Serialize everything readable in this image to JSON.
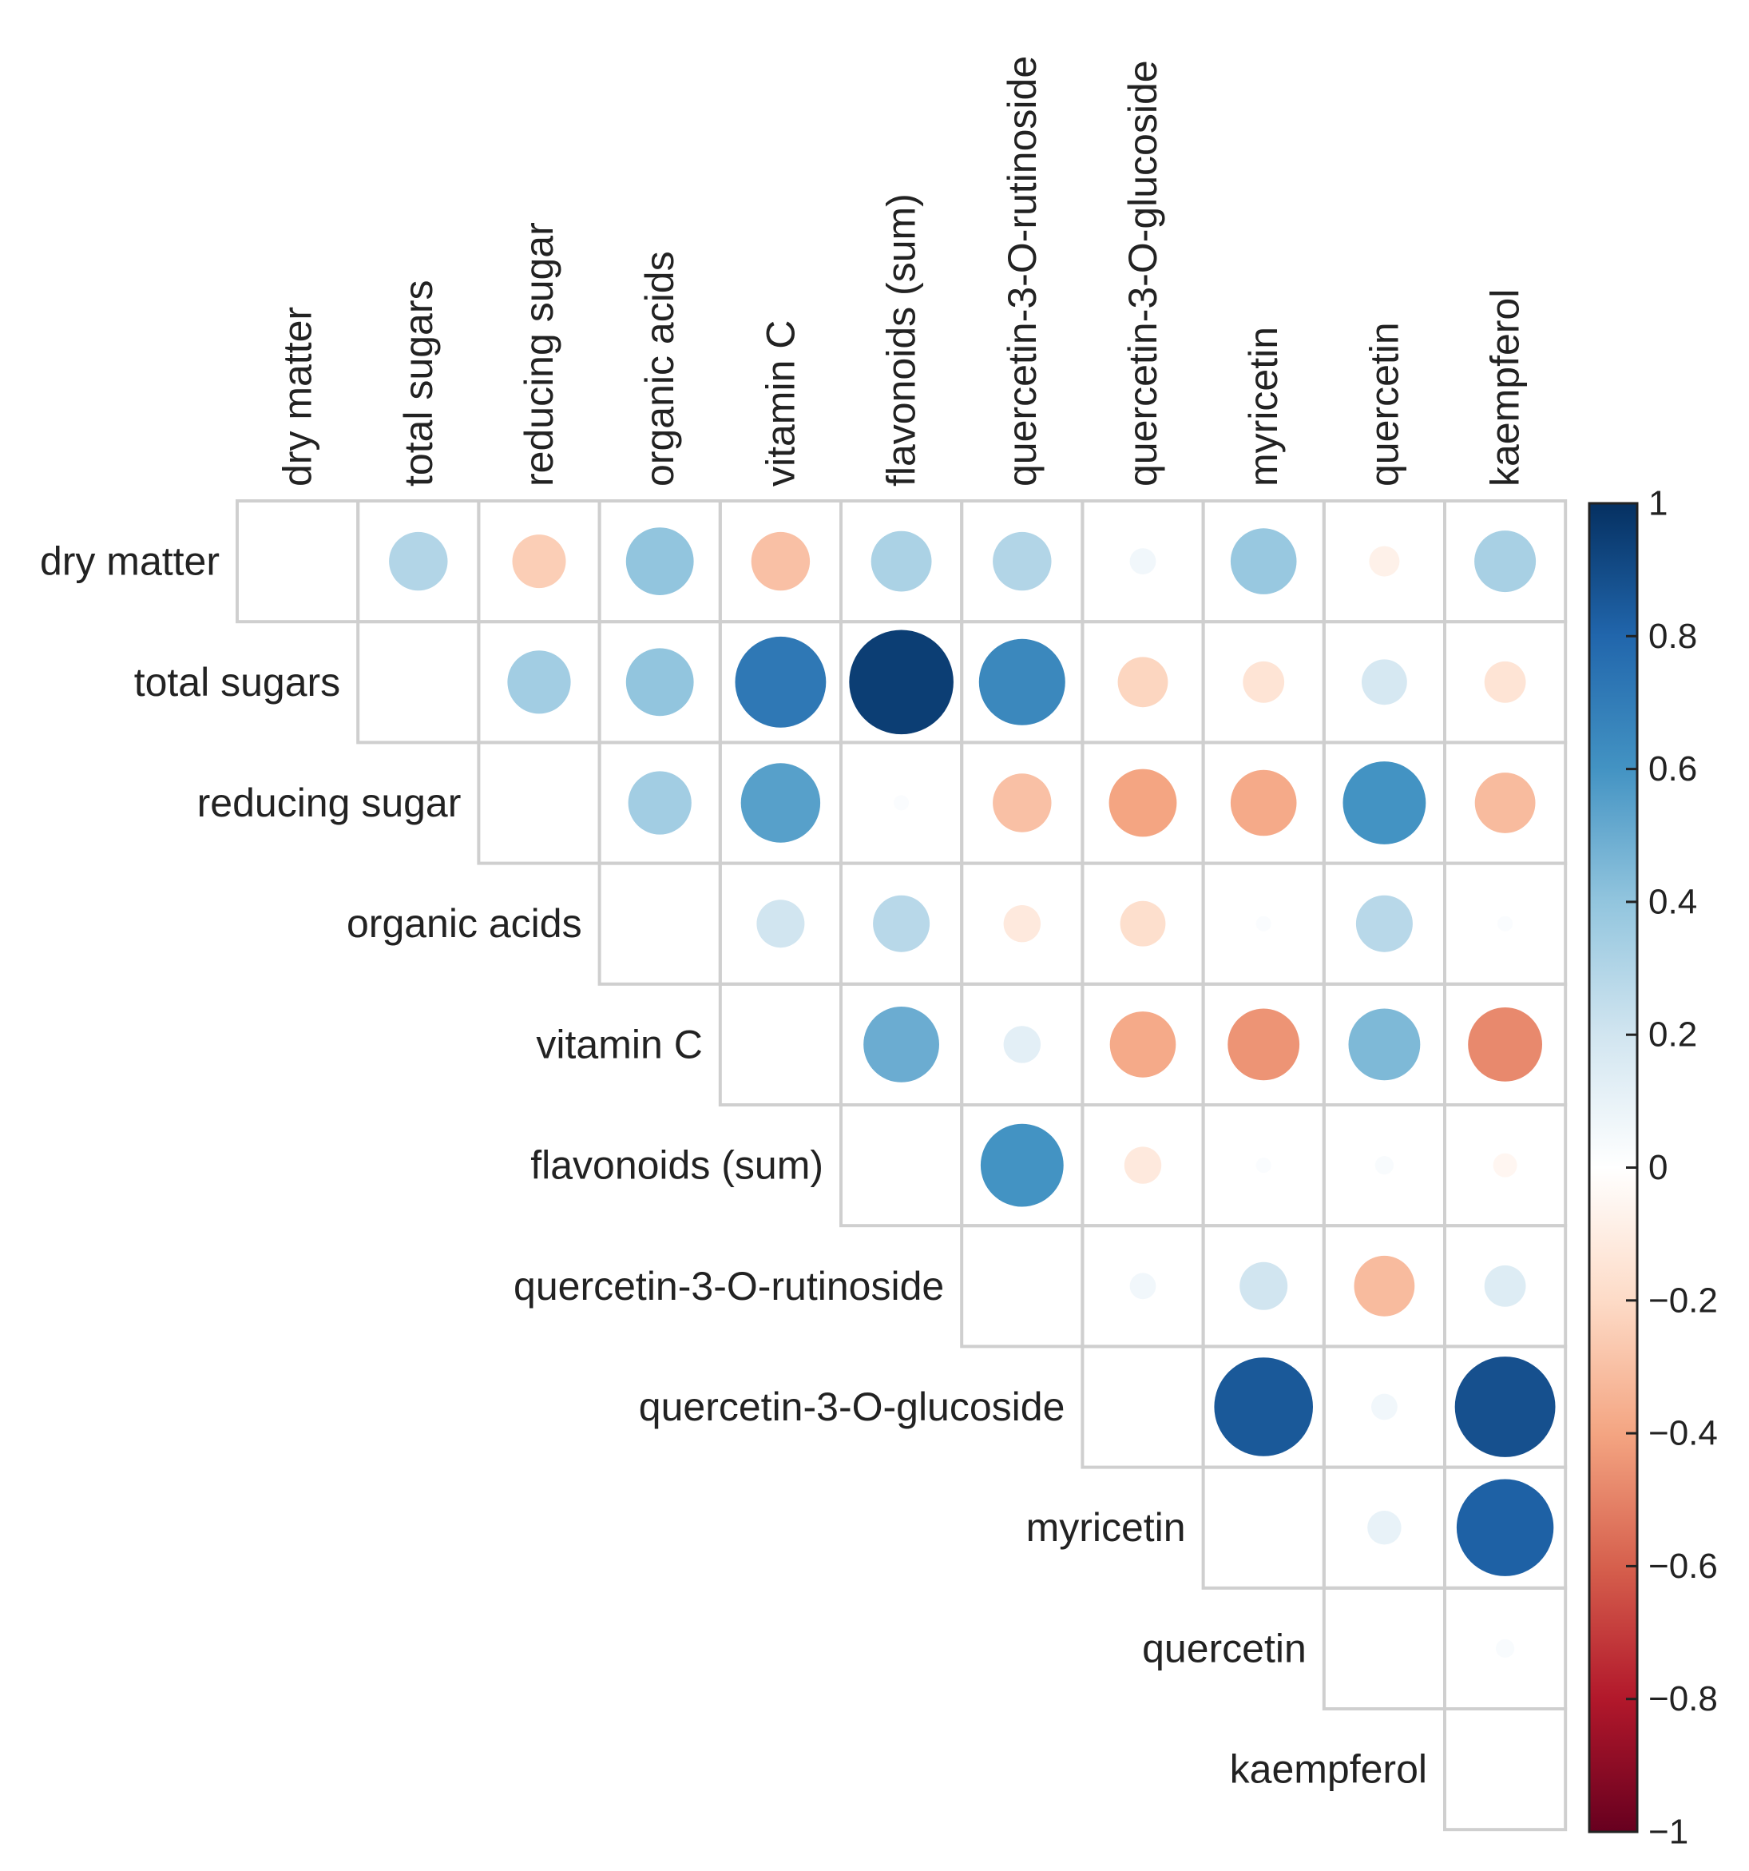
{
  "chart_data": {
    "type": "heatmap",
    "style": "correlation-circles-upper-triangle",
    "variables": [
      "dry matter",
      "total sugars",
      "reducing sugar",
      "organic acids",
      "vitamin C",
      "flavonoids (sum)",
      "quercetin-3-O-rutinoside",
      "quercetin-3-O-glucoside",
      "myricetin",
      "quercetin",
      "kaempferol"
    ],
    "matrix": [
      [
        null,
        0.3,
        -0.25,
        0.4,
        -0.3,
        0.32,
        0.3,
        0.06,
        0.38,
        -0.08,
        0.33
      ],
      [
        null,
        null,
        0.35,
        0.4,
        0.72,
        0.95,
        0.65,
        -0.22,
        -0.15,
        0.18,
        -0.15
      ],
      [
        null,
        null,
        null,
        0.35,
        0.55,
        0.02,
        -0.3,
        -0.4,
        -0.38,
        0.6,
        -0.32
      ],
      [
        null,
        null,
        null,
        null,
        0.2,
        0.28,
        -0.12,
        -0.18,
        0.02,
        0.28,
        0.02
      ],
      [
        null,
        null,
        null,
        null,
        null,
        0.5,
        0.12,
        -0.38,
        -0.45,
        0.45,
        -0.48
      ],
      [
        null,
        null,
        null,
        null,
        null,
        null,
        0.6,
        -0.12,
        0.02,
        0.03,
        -0.05
      ],
      [
        null,
        null,
        null,
        null,
        null,
        null,
        null,
        0.06,
        0.2,
        -0.32,
        0.15
      ],
      [
        null,
        null,
        null,
        null,
        null,
        null,
        null,
        null,
        0.85,
        0.06,
        0.88
      ],
      [
        null,
        null,
        null,
        null,
        null,
        null,
        null,
        null,
        null,
        0.1,
        0.82
      ],
      [
        null,
        null,
        null,
        null,
        null,
        null,
        null,
        null,
        null,
        null,
        0.03
      ],
      [
        null,
        null,
        null,
        null,
        null,
        null,
        null,
        null,
        null,
        null,
        null
      ]
    ],
    "colorbar": {
      "ticks": [
        "1",
        "0.8",
        "0.6",
        "0.4",
        "0.2",
        "0",
        "−0.2",
        "−0.4",
        "−0.6",
        "−0.8",
        "−1"
      ],
      "range": [
        -1,
        1
      ]
    },
    "colors": {
      "negative_strong": "#67001f",
      "negative_mid": "#d6604d",
      "negative_light": "#fddbc7",
      "neutral": "#ffffff",
      "positive_light": "#d1e5f0",
      "positive_mid": "#4393c3",
      "positive_strong": "#053061"
    },
    "title": "",
    "xlabel": "",
    "ylabel": ""
  }
}
